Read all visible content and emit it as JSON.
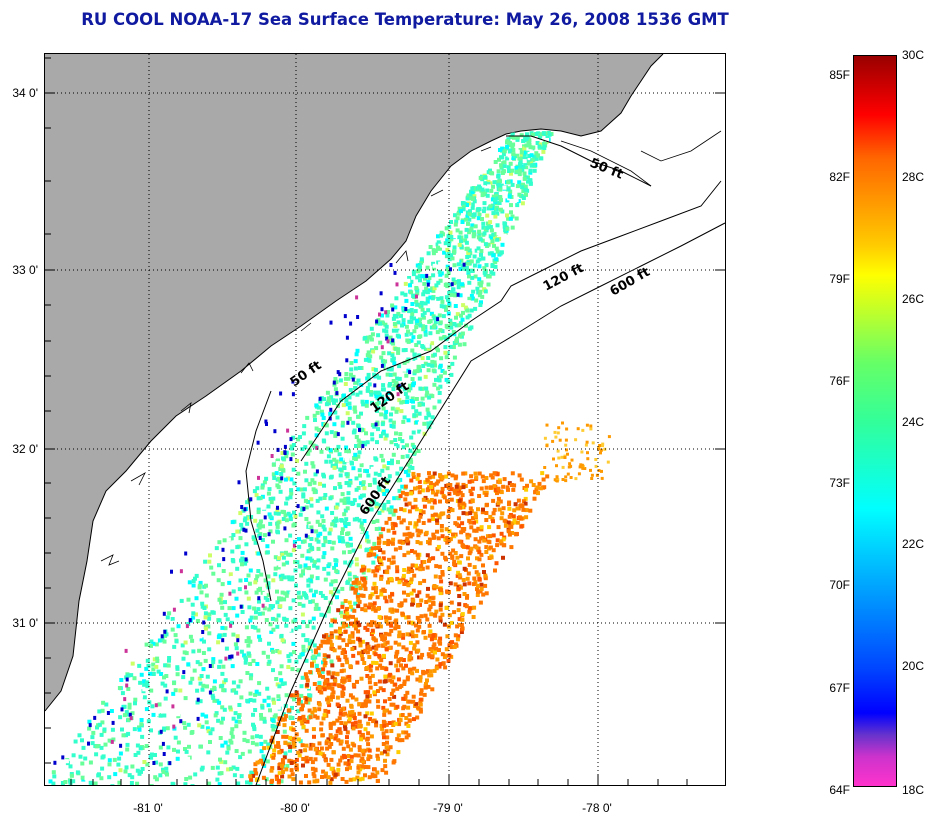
{
  "title": "RU COOL  NOAA-17  Sea Surface Temperature:  May 26, 2008 1536 GMT",
  "map": {
    "lat_labels": [
      "34 0'",
      "33 0'",
      "32 0'",
      "31 0'"
    ],
    "lon_labels": [
      "-81 0'",
      "-80 0'",
      "-79 0'",
      "-78 0'"
    ],
    "depth_contours": [
      "50 ft",
      "50 ft",
      "120 ft",
      "120 ft",
      "600 ft",
      "600 ft"
    ],
    "land_color": "#a9a9a9",
    "coast_color": "#000000"
  },
  "colorbar": {
    "f_labels": [
      "85F",
      "82F",
      "79F",
      "76F",
      "73F",
      "70F",
      "67F",
      "64F"
    ],
    "c_labels": [
      "30C",
      "28C",
      "26C",
      "24C",
      "22C",
      "20C",
      "18C"
    ],
    "palette": [
      "#ff33cc",
      "#6633cc",
      "#0000ff",
      "#0099ff",
      "#00ffff",
      "#66ff66",
      "#ffff00",
      "#ff9900",
      "#ff6600",
      "#ff0000",
      "#990000"
    ]
  }
}
